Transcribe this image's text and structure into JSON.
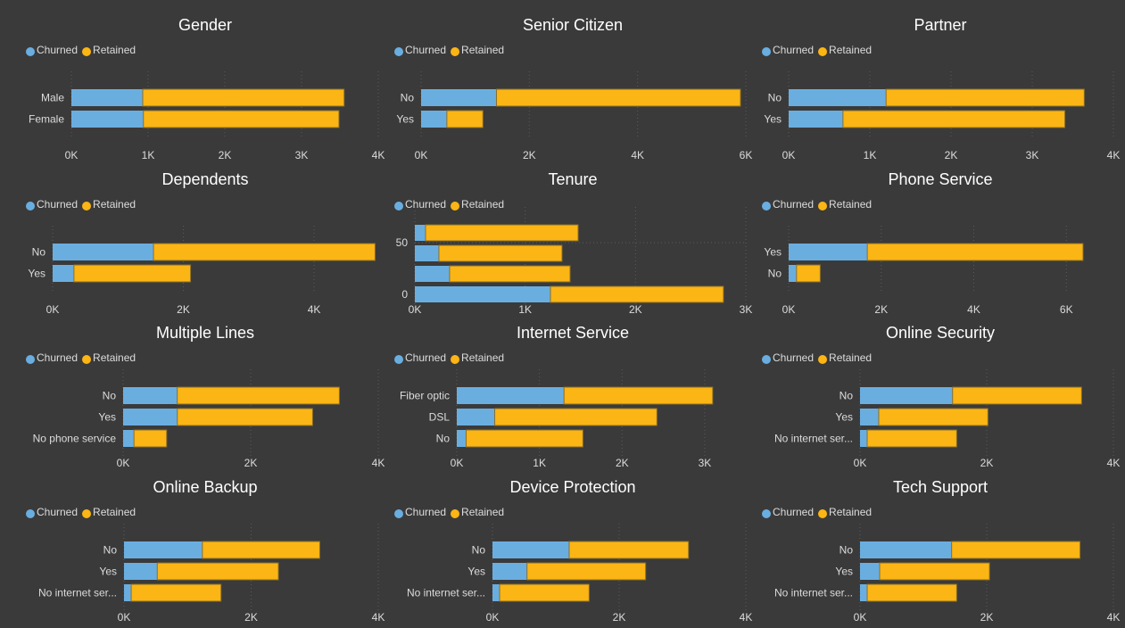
{
  "colors": {
    "churned": "#6aaee0",
    "retained": "#fbb514",
    "background": "#3a3a3a",
    "bar_border": "#8a6e2a"
  },
  "legend": {
    "churned_label": "Churned",
    "retained_label": "Retained"
  },
  "chart_data": [
    {
      "id": "gender",
      "type": "bar",
      "orientation": "horizontal",
      "stacked": true,
      "title": "Gender",
      "categories": [
        "Male",
        "Female"
      ],
      "series": [
        {
          "name": "Churned",
          "values": [
            930,
            939
          ]
        },
        {
          "name": "Retained",
          "values": [
            2625,
            2549
          ]
        }
      ],
      "xlim": [
        0,
        4000
      ],
      "xticks": [
        "0K",
        "1K",
        "2K",
        "3K",
        "4K"
      ],
      "xtick_values": [
        0,
        1000,
        2000,
        3000,
        4000
      ],
      "legend": "top-left",
      "grid": true
    },
    {
      "id": "senior-citizen",
      "type": "bar",
      "orientation": "horizontal",
      "stacked": true,
      "title": "Senior Citizen",
      "categories": [
        "No",
        "Yes"
      ],
      "series": [
        {
          "name": "Churned",
          "values": [
            1393,
            476
          ]
        },
        {
          "name": "Retained",
          "values": [
            4508,
            666
          ]
        }
      ],
      "xlim": [
        0,
        6000
      ],
      "xticks": [
        "0K",
        "2K",
        "4K",
        "6K"
      ],
      "xtick_values": [
        0,
        2000,
        4000,
        6000
      ],
      "legend": "top-left",
      "grid": true
    },
    {
      "id": "partner",
      "type": "bar",
      "orientation": "horizontal",
      "stacked": true,
      "title": "Partner",
      "categories": [
        "No",
        "Yes"
      ],
      "series": [
        {
          "name": "Churned",
          "values": [
            1200,
            669
          ]
        },
        {
          "name": "Retained",
          "values": [
            2441,
            2733
          ]
        }
      ],
      "xlim": [
        0,
        4000
      ],
      "xticks": [
        "0K",
        "1K",
        "2K",
        "3K",
        "4K"
      ],
      "xtick_values": [
        0,
        1000,
        2000,
        3000,
        4000
      ],
      "legend": "top-left",
      "grid": true
    },
    {
      "id": "dependents",
      "type": "bar",
      "orientation": "horizontal",
      "stacked": true,
      "title": "Dependents",
      "categories": [
        "No",
        "Yes"
      ],
      "series": [
        {
          "name": "Churned",
          "values": [
            1543,
            326
          ]
        },
        {
          "name": "Retained",
          "values": [
            3390,
            1784
          ]
        }
      ],
      "xlim": [
        0,
        4900
      ],
      "xticks": [
        "0K",
        "2K",
        "4K"
      ],
      "xtick_values": [
        0,
        2000,
        4000
      ],
      "legend": "top-left",
      "grid": true
    },
    {
      "id": "tenure",
      "type": "bar",
      "orientation": "horizontal",
      "stacked": true,
      "title": "Tenure",
      "categories": [
        "bin-4",
        "bin-3",
        "bin-2",
        "bin-1"
      ],
      "ylabels": [
        {
          "text": "50",
          "bar_index": 1
        },
        {
          "text": "0",
          "bar_index": 3
        }
      ],
      "series": [
        {
          "name": "Churned",
          "values": [
            97,
            218,
            315,
            1229
          ]
        },
        {
          "name": "Retained",
          "values": [
            1383,
            1116,
            1092,
            1568
          ]
        }
      ],
      "xlim": [
        0,
        3000
      ],
      "xticks": [
        "0K",
        "1K",
        "2K",
        "3K"
      ],
      "xtick_values": [
        0,
        1000,
        2000,
        3000
      ],
      "legend": "top-left",
      "grid": true
    },
    {
      "id": "phone-service",
      "type": "bar",
      "orientation": "horizontal",
      "stacked": true,
      "title": "Phone Service",
      "categories": [
        "Yes",
        "No"
      ],
      "series": [
        {
          "name": "Churned",
          "values": [
            1699,
            170
          ]
        },
        {
          "name": "Retained",
          "values": [
            4662,
            512
          ]
        }
      ],
      "xlim": [
        0,
        6400
      ],
      "xticks": [
        "0K",
        "2K",
        "4K",
        "6K"
      ],
      "xtick_values": [
        0,
        2000,
        4000,
        6000
      ],
      "legend": "top-left",
      "grid": true
    },
    {
      "id": "multiple-lines",
      "type": "bar",
      "orientation": "horizontal",
      "stacked": true,
      "title": "Multiple Lines",
      "categories": [
        "No",
        "Yes",
        "No phone service"
      ],
      "series": [
        {
          "name": "Churned",
          "values": [
            849,
            850,
            170
          ]
        },
        {
          "name": "Retained",
          "values": [
            2541,
            2121,
            512
          ]
        }
      ],
      "xlim": [
        0,
        4000
      ],
      "xticks": [
        "0K",
        "2K",
        "4K"
      ],
      "xtick_values": [
        0,
        2000,
        4000
      ],
      "legend": "top-left",
      "grid": true
    },
    {
      "id": "internet-service",
      "type": "bar",
      "orientation": "horizontal",
      "stacked": true,
      "title": "Internet Service",
      "categories": [
        "Fiber optic",
        "DSL",
        "No"
      ],
      "series": [
        {
          "name": "Churned",
          "values": [
            1297,
            459,
            113
          ]
        },
        {
          "name": "Retained",
          "values": [
            1799,
            1962,
            1413
          ]
        }
      ],
      "xlim": [
        0,
        3400
      ],
      "xticks": [
        "0K",
        "1K",
        "2K",
        "3K"
      ],
      "xtick_values": [
        0,
        1000,
        2000,
        3000
      ],
      "legend": "top-left",
      "grid": true
    },
    {
      "id": "online-security",
      "type": "bar",
      "orientation": "horizontal",
      "stacked": true,
      "title": "Online Security",
      "categories": [
        "No",
        "Yes",
        "No internet ser..."
      ],
      "series": [
        {
          "name": "Churned",
          "values": [
            1461,
            295,
            113
          ]
        },
        {
          "name": "Retained",
          "values": [
            2037,
            1724,
            1413
          ]
        }
      ],
      "xlim": [
        0,
        4000
      ],
      "xticks": [
        "0K",
        "2K",
        "4K"
      ],
      "xtick_values": [
        0,
        2000,
        4000
      ],
      "legend": "top-left",
      "grid": true
    },
    {
      "id": "online-backup",
      "type": "bar",
      "orientation": "horizontal",
      "stacked": true,
      "title": "Online Backup",
      "categories": [
        "No",
        "Yes",
        "No internet ser..."
      ],
      "series": [
        {
          "name": "Churned",
          "values": [
            1233,
            523,
            113
          ]
        },
        {
          "name": "Retained",
          "values": [
            1847,
            1906,
            1413
          ]
        }
      ],
      "xlim": [
        0,
        4000
      ],
      "xticks": [
        "0K",
        "2K",
        "4K"
      ],
      "xtick_values": [
        0,
        2000,
        4000
      ],
      "legend": "top-left",
      "grid": true
    },
    {
      "id": "device-protection",
      "type": "bar",
      "orientation": "horizontal",
      "stacked": true,
      "title": "Device Protection",
      "categories": [
        "No",
        "Yes",
        "No internet ser..."
      ],
      "series": [
        {
          "name": "Churned",
          "values": [
            1211,
            545,
            113
          ]
        },
        {
          "name": "Retained",
          "values": [
            1884,
            1873,
            1413
          ]
        }
      ],
      "xlim": [
        0,
        4000
      ],
      "xticks": [
        "0K",
        "2K",
        "4K"
      ],
      "xtick_values": [
        0,
        2000,
        4000
      ],
      "legend": "top-left",
      "grid": true
    },
    {
      "id": "tech-support",
      "type": "bar",
      "orientation": "horizontal",
      "stacked": true,
      "title": "Tech Support",
      "categories": [
        "No",
        "Yes",
        "No internet ser..."
      ],
      "series": [
        {
          "name": "Churned",
          "values": [
            1446,
            310,
            113
          ]
        },
        {
          "name": "Retained",
          "values": [
            2027,
            1734,
            1413
          ]
        }
      ],
      "xlim": [
        0,
        4000
      ],
      "xticks": [
        "0K",
        "2K",
        "4K"
      ],
      "xtick_values": [
        0,
        2000,
        4000
      ],
      "legend": "top-left",
      "grid": true
    }
  ]
}
